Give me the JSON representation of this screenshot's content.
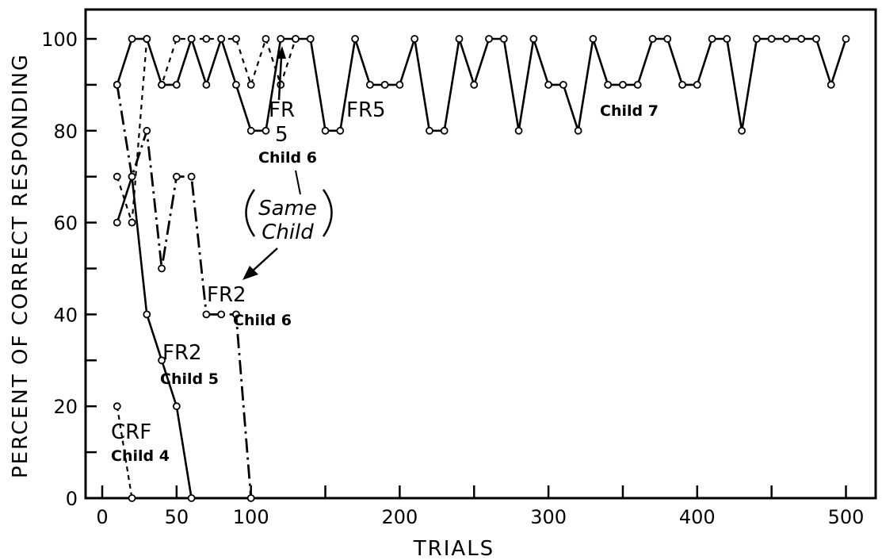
{
  "chart_data": {
    "type": "line",
    "xlabel": "TRIALS",
    "ylabel": "PERCENT OF CORRECT RESPONDING",
    "xlim": [
      0,
      520
    ],
    "ylim": [
      0,
      106
    ],
    "x_ticks": [
      0,
      50,
      100,
      200,
      300,
      400,
      500
    ],
    "y_ticks": [
      0,
      20,
      40,
      60,
      80,
      100
    ],
    "series": [
      {
        "name": "CRF Child 4",
        "style": "short-dash",
        "points": [
          [
            10,
            20
          ],
          [
            20,
            0
          ]
        ]
      },
      {
        "name": "FR2 Child 5",
        "style": "solid",
        "points": [
          [
            10,
            60
          ],
          [
            20,
            70
          ],
          [
            30,
            40
          ],
          [
            40,
            30
          ],
          [
            50,
            20
          ],
          [
            60,
            0
          ]
        ]
      },
      {
        "name": "FR2 Child 6",
        "style": "dash-dot",
        "points": [
          [
            10,
            90
          ],
          [
            20,
            70
          ],
          [
            30,
            80
          ],
          [
            40,
            50
          ],
          [
            50,
            70
          ],
          [
            60,
            70
          ],
          [
            70,
            40
          ],
          [
            80,
            40
          ],
          [
            90,
            40
          ],
          [
            100,
            0
          ]
        ]
      },
      {
        "name": "FR 5 Child 6",
        "style": "dotted",
        "points": [
          [
            10,
            70
          ],
          [
            20,
            60
          ],
          [
            30,
            100
          ],
          [
            40,
            90
          ],
          [
            50,
            100
          ],
          [
            60,
            100
          ],
          [
            70,
            100
          ],
          [
            80,
            100
          ],
          [
            90,
            100
          ],
          [
            100,
            90
          ],
          [
            110,
            100
          ],
          [
            120,
            90
          ],
          [
            130,
            100
          ]
        ]
      },
      {
        "name": "FR5 Child 7",
        "style": "solid",
        "points": [
          [
            10,
            90
          ],
          [
            20,
            100
          ],
          [
            30,
            100
          ],
          [
            40,
            90
          ],
          [
            50,
            90
          ],
          [
            60,
            100
          ],
          [
            70,
            90
          ],
          [
            80,
            100
          ],
          [
            90,
            90
          ],
          [
            100,
            80
          ],
          [
            110,
            80
          ],
          [
            120,
            100
          ],
          [
            130,
            100
          ],
          [
            140,
            100
          ],
          [
            150,
            80
          ],
          [
            160,
            80
          ],
          [
            170,
            100
          ],
          [
            180,
            90
          ],
          [
            190,
            90
          ],
          [
            200,
            90
          ],
          [
            210,
            100
          ],
          [
            220,
            80
          ],
          [
            230,
            80
          ],
          [
            240,
            100
          ],
          [
            250,
            90
          ],
          [
            260,
            100
          ],
          [
            270,
            100
          ],
          [
            280,
            80
          ],
          [
            290,
            100
          ],
          [
            300,
            90
          ],
          [
            310,
            90
          ],
          [
            320,
            80
          ],
          [
            330,
            100
          ],
          [
            340,
            90
          ],
          [
            350,
            90
          ],
          [
            360,
            90
          ],
          [
            370,
            100
          ],
          [
            380,
            100
          ],
          [
            390,
            90
          ],
          [
            400,
            90
          ],
          [
            410,
            100
          ],
          [
            420,
            100
          ],
          [
            430,
            80
          ],
          [
            440,
            100
          ],
          [
            450,
            100
          ],
          [
            460,
            100
          ],
          [
            470,
            100
          ],
          [
            480,
            100
          ],
          [
            490,
            90
          ],
          [
            500,
            100
          ]
        ]
      }
    ],
    "annotations": {
      "crf": "CRF",
      "child4": "Child 4",
      "fr2_c5": "FR2",
      "child5": "Child 5",
      "fr2_c6": "FR2",
      "child6_fr2": "Child 6",
      "fr_label": "FR",
      "five_label": "5",
      "child6_fr5": "Child 6",
      "fr5_c7": "FR5",
      "child7": "Child 7",
      "same": "Same",
      "child_word": "Child"
    },
    "grid": false,
    "legend": "none"
  }
}
